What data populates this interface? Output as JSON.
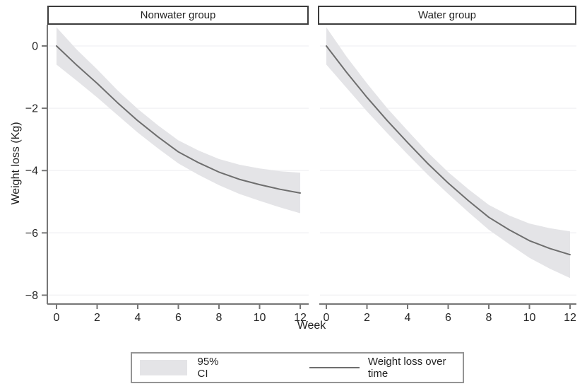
{
  "colors": {
    "ci_fill": "#e4e4e7",
    "mean_line": "#6e6e6e",
    "axis": "#767676",
    "grid": "#f3f3f5",
    "text": "#262626",
    "header_border": "#3c3c3c",
    "legend_border": "#949494"
  },
  "chart_data": {
    "type": "line",
    "layout": "two-panel-shared-y",
    "title": "",
    "xlabel": "Week",
    "ylabel": "Weight loss (Kg)",
    "xlim": [
      0,
      12
    ],
    "ylim": [
      -8.3,
      0.7
    ],
    "grid": true,
    "x_ticks": [
      0,
      2,
      4,
      6,
      8,
      10,
      12
    ],
    "x_tick_labels": [
      "0",
      "2",
      "4",
      "6",
      "8",
      "10",
      "12"
    ],
    "y_ticks": [
      0,
      -2,
      -4,
      -6,
      -8
    ],
    "y_tick_labels": [
      "0",
      "−2",
      "−4",
      "−6",
      "−8"
    ],
    "x": [
      0,
      1,
      2,
      3,
      4,
      5,
      6,
      7,
      8,
      9,
      10,
      11,
      12
    ],
    "panels": [
      {
        "title": "Nonwater group",
        "series_name": "Weight loss over time",
        "mean": [
          0,
          -0.62,
          -1.2,
          -1.82,
          -2.4,
          -2.92,
          -3.4,
          -3.75,
          -4.05,
          -4.28,
          -4.45,
          -4.6,
          -4.72
        ],
        "ci_half": [
          0.6,
          0.5,
          0.45,
          0.4,
          0.38,
          0.37,
          0.37,
          0.39,
          0.42,
          0.47,
          0.52,
          0.58,
          0.65
        ]
      },
      {
        "title": "Water group",
        "series_name": "Weight loss over time",
        "mean": [
          0,
          -0.85,
          -1.65,
          -2.4,
          -3.1,
          -3.78,
          -4.4,
          -4.97,
          -5.5,
          -5.9,
          -6.25,
          -6.5,
          -6.7
        ],
        "ci_half": [
          0.6,
          0.5,
          0.45,
          0.4,
          0.38,
          0.36,
          0.35,
          0.37,
          0.4,
          0.46,
          0.55,
          0.65,
          0.75
        ]
      }
    ],
    "legend": {
      "position": "bottom",
      "items": [
        {
          "type": "area",
          "label": "95% CI"
        },
        {
          "type": "line",
          "label": "Weight loss over time"
        }
      ]
    }
  }
}
